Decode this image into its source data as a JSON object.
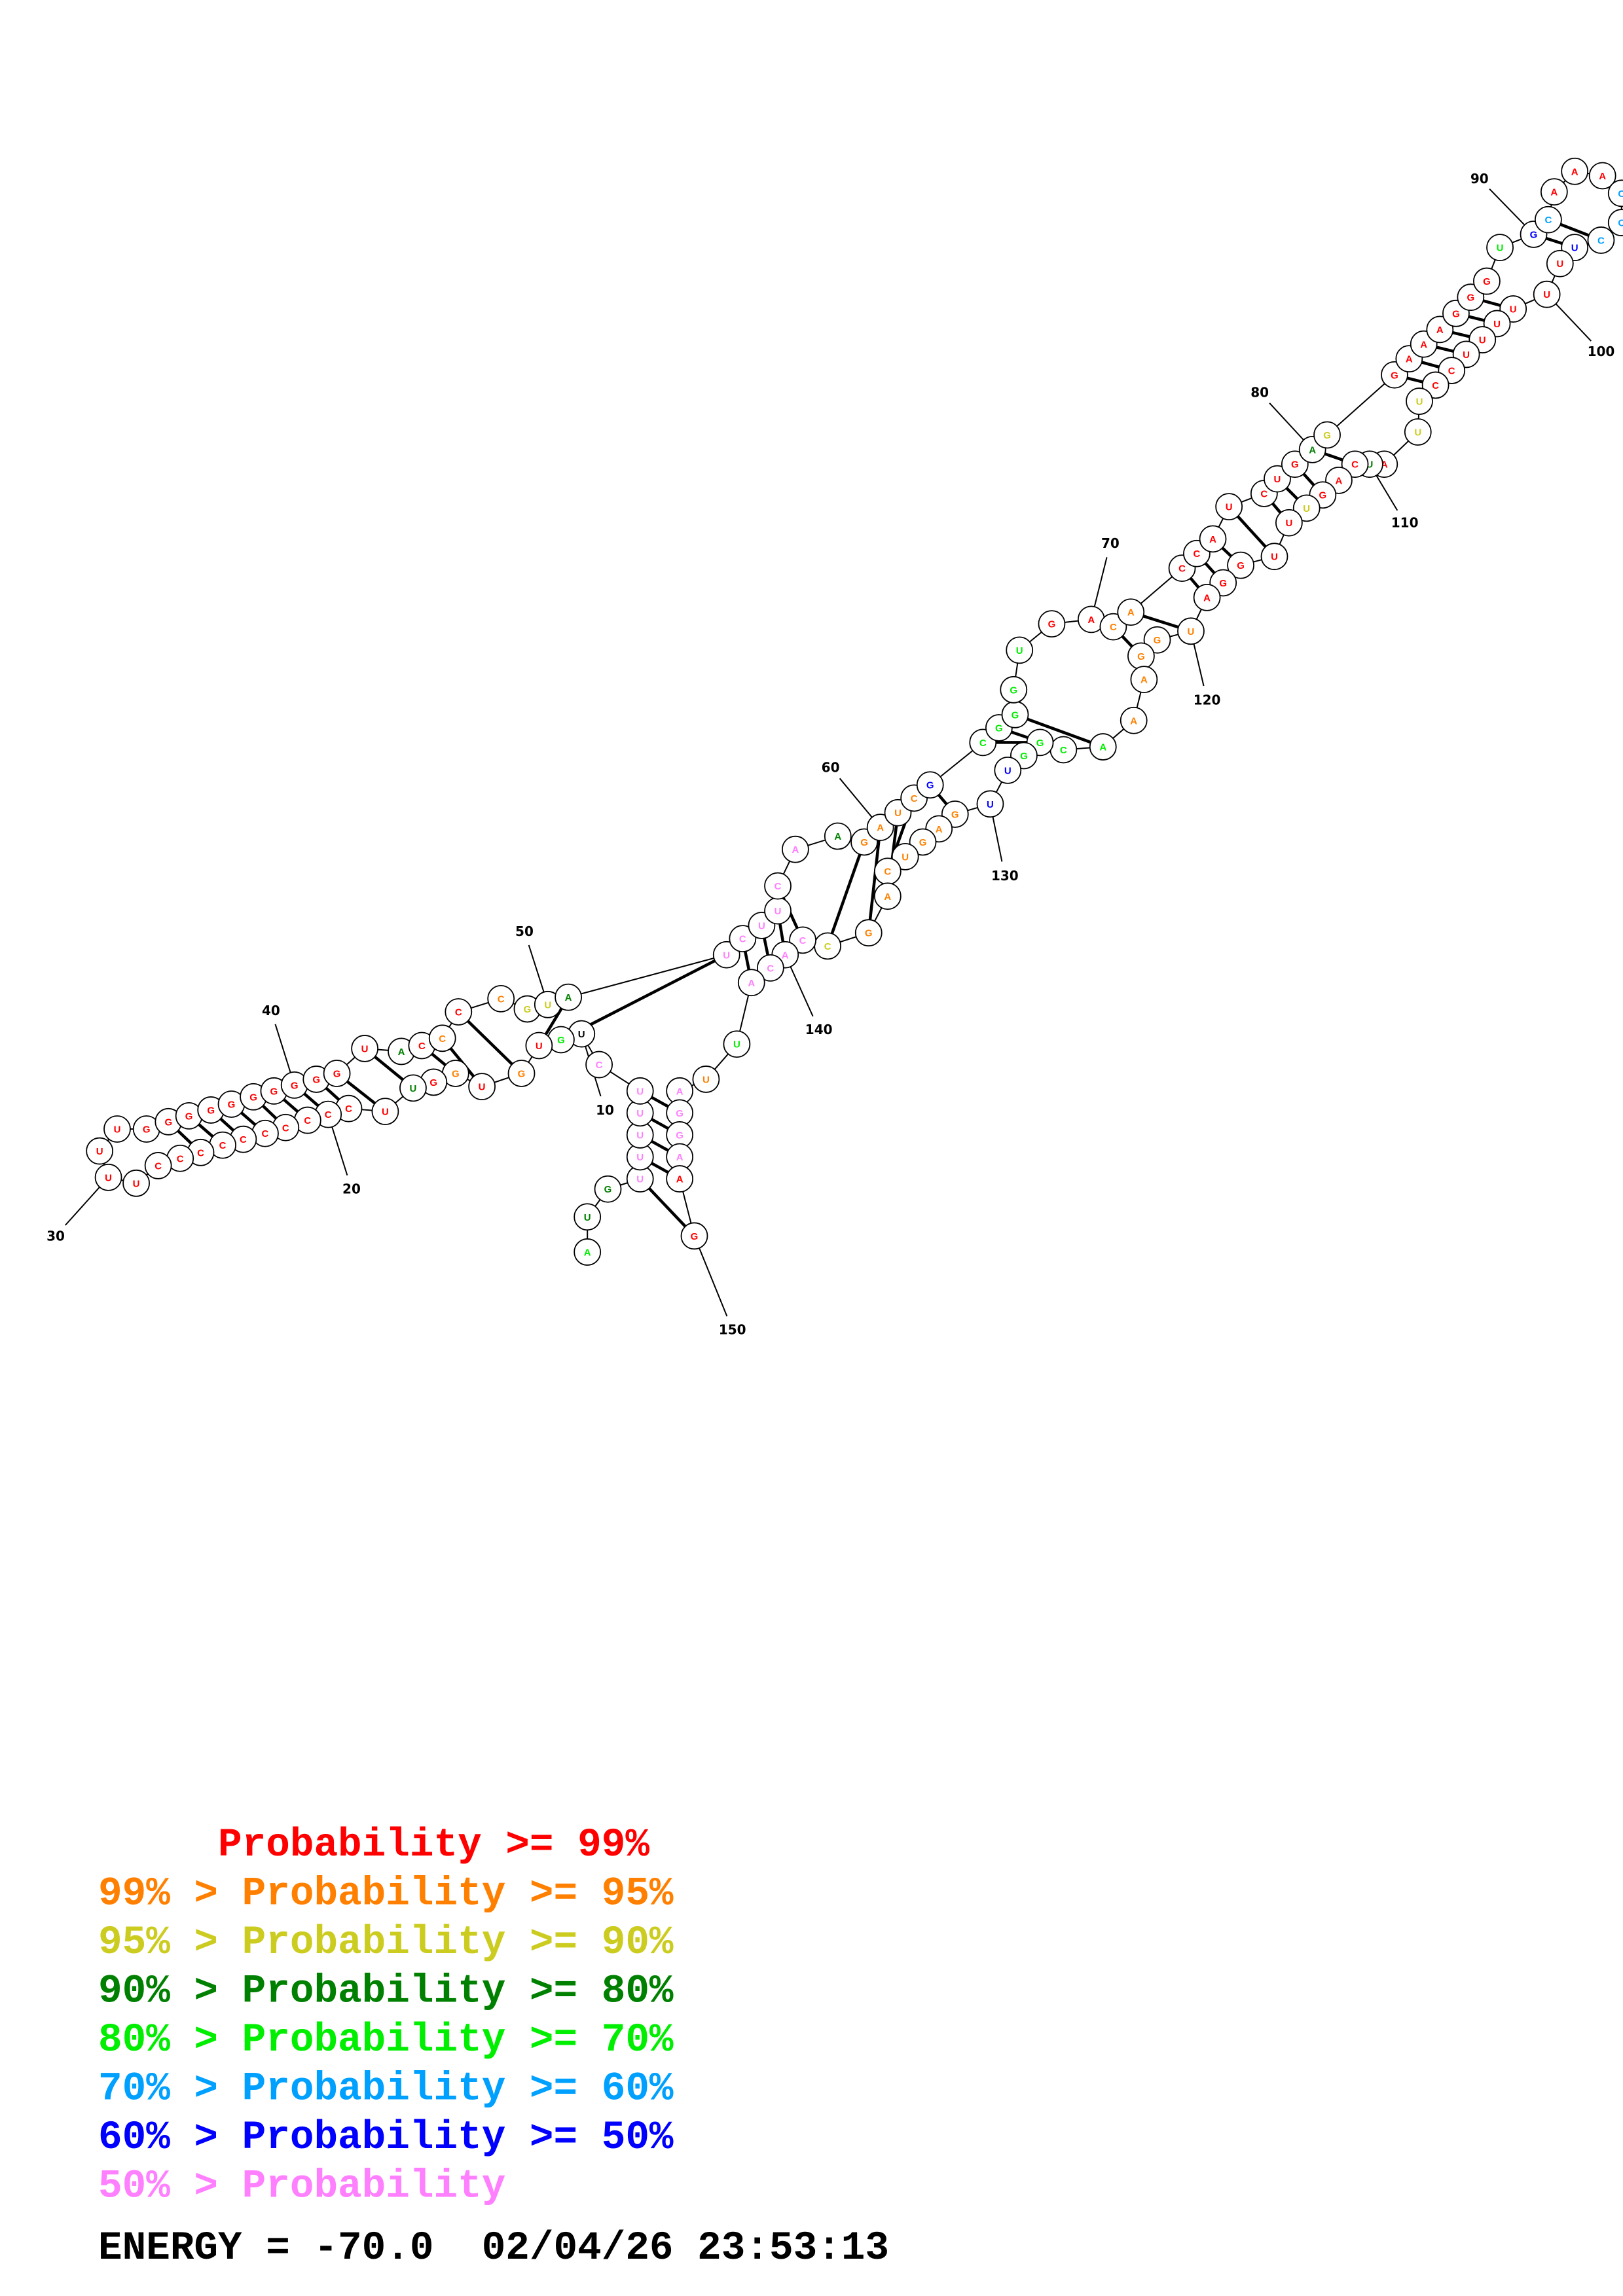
{
  "diagram": {
    "sequence": [
      {
        "n": 1,
        "base": "A",
        "c": "h"
      },
      {
        "n": 2,
        "base": "U",
        "c": "d"
      },
      {
        "n": 3,
        "base": "G",
        "c": "d"
      },
      {
        "n": 4,
        "base": "U",
        "c": "p"
      },
      {
        "n": 5,
        "base": "U",
        "c": "p"
      },
      {
        "n": 6,
        "base": "U",
        "c": "p"
      },
      {
        "n": 7,
        "base": "U",
        "c": "p"
      },
      {
        "n": 8,
        "base": "U",
        "c": "p"
      },
      {
        "n": 9,
        "base": "C",
        "c": "p"
      },
      {
        "n": 10,
        "base": "U",
        "c": "g"
      },
      {
        "n": 11,
        "base": "G",
        "c": "h"
      },
      {
        "n": 12,
        "base": "U",
        "c": "r"
      },
      {
        "n": 13,
        "base": "G",
        "c": "o"
      },
      {
        "n": 14,
        "base": "U",
        "c": "r"
      },
      {
        "n": 15,
        "base": "G",
        "c": "o"
      },
      {
        "n": 16,
        "base": "G",
        "c": "r"
      },
      {
        "n": 17,
        "base": "U",
        "c": "d"
      },
      {
        "n": 18,
        "base": "U",
        "c": "r"
      },
      {
        "n": 19,
        "base": "C",
        "c": "r"
      },
      {
        "n": 20,
        "base": "C",
        "c": "r"
      },
      {
        "n": 21,
        "base": "C",
        "c": "r"
      },
      {
        "n": 22,
        "base": "C",
        "c": "r"
      },
      {
        "n": 23,
        "base": "C",
        "c": "r"
      },
      {
        "n": 24,
        "base": "C",
        "c": "r"
      },
      {
        "n": 25,
        "base": "C",
        "c": "r"
      },
      {
        "n": 26,
        "base": "C",
        "c": "r"
      },
      {
        "n": 27,
        "base": "C",
        "c": "r"
      },
      {
        "n": 28,
        "base": "C",
        "c": "r"
      },
      {
        "n": 29,
        "base": "U",
        "c": "r"
      },
      {
        "n": 30,
        "base": "U",
        "c": "r"
      },
      {
        "n": 31,
        "base": "U",
        "c": "r"
      },
      {
        "n": 32,
        "base": "U",
        "c": "r"
      },
      {
        "n": 33,
        "base": "G",
        "c": "r"
      },
      {
        "n": 34,
        "base": "G",
        "c": "r"
      },
      {
        "n": 35,
        "base": "G",
        "c": "r"
      },
      {
        "n": 36,
        "base": "G",
        "c": "r"
      },
      {
        "n": 37,
        "base": "G",
        "c": "r"
      },
      {
        "n": 38,
        "base": "G",
        "c": "r"
      },
      {
        "n": 39,
        "base": "G",
        "c": "r"
      },
      {
        "n": 40,
        "base": "G",
        "c": "r"
      },
      {
        "n": 41,
        "base": "G",
        "c": "r"
      },
      {
        "n": 42,
        "base": "G",
        "c": "r"
      },
      {
        "n": 43,
        "base": "U",
        "c": "r"
      },
      {
        "n": 44,
        "base": "A",
        "c": "d"
      },
      {
        "n": 45,
        "base": "C",
        "c": "r"
      },
      {
        "n": 46,
        "base": "C",
        "c": "o"
      },
      {
        "n": 47,
        "base": "C",
        "c": "r"
      },
      {
        "n": 48,
        "base": "C",
        "c": "o"
      },
      {
        "n": 49,
        "base": "G",
        "c": "y"
      },
      {
        "n": 50,
        "base": "U",
        "c": "y"
      },
      {
        "n": 51,
        "base": "A",
        "c": "d"
      },
      {
        "n": 52,
        "base": "U",
        "c": "p"
      },
      {
        "n": 53,
        "base": "C",
        "c": "p"
      },
      {
        "n": 54,
        "base": "U",
        "c": "p"
      },
      {
        "n": 55,
        "base": "U",
        "c": "p"
      },
      {
        "n": 56,
        "base": "C",
        "c": "p"
      },
      {
        "n": 57,
        "base": "A",
        "c": "p"
      },
      {
        "n": 58,
        "base": "A",
        "c": "d"
      },
      {
        "n": 59,
        "base": "G",
        "c": "o"
      },
      {
        "n": 60,
        "base": "A",
        "c": "o"
      },
      {
        "n": 61,
        "base": "U",
        "c": "o"
      },
      {
        "n": 62,
        "base": "C",
        "c": "o"
      },
      {
        "n": 63,
        "base": "G",
        "c": "b"
      },
      {
        "n": 64,
        "base": "C",
        "c": "h"
      },
      {
        "n": 65,
        "base": "G",
        "c": "h"
      },
      {
        "n": 66,
        "base": "G",
        "c": "h"
      },
      {
        "n": 67,
        "base": "G",
        "c": "h"
      },
      {
        "n": 68,
        "base": "U",
        "c": "h"
      },
      {
        "n": 69,
        "base": "G",
        "c": "r"
      },
      {
        "n": 70,
        "base": "A",
        "c": "r"
      },
      {
        "n": 71,
        "base": "C",
        "c": "o"
      },
      {
        "n": 72,
        "base": "A",
        "c": "o"
      },
      {
        "n": 73,
        "base": "C",
        "c": "r"
      },
      {
        "n": 74,
        "base": "C",
        "c": "r"
      },
      {
        "n": 75,
        "base": "A",
        "c": "r"
      },
      {
        "n": 76,
        "base": "U",
        "c": "r"
      },
      {
        "n": 77,
        "base": "C",
        "c": "r"
      },
      {
        "n": 78,
        "base": "U",
        "c": "r"
      },
      {
        "n": 79,
        "base": "G",
        "c": "r"
      },
      {
        "n": 80,
        "base": "A",
        "c": "d"
      },
      {
        "n": 81,
        "base": "G",
        "c": "y"
      },
      {
        "n": 82,
        "base": "G",
        "c": "r"
      },
      {
        "n": 83,
        "base": "A",
        "c": "r"
      },
      {
        "n": 84,
        "base": "A",
        "c": "r"
      },
      {
        "n": 85,
        "base": "A",
        "c": "r"
      },
      {
        "n": 86,
        "base": "G",
        "c": "r"
      },
      {
        "n": 87,
        "base": "G",
        "c": "r"
      },
      {
        "n": 88,
        "base": "G",
        "c": "r"
      },
      {
        "n": 89,
        "base": "U",
        "c": "h"
      },
      {
        "n": 90,
        "base": "G",
        "c": "b"
      },
      {
        "n": 91,
        "base": "C",
        "c": "c"
      },
      {
        "n": 92,
        "base": "A",
        "c": "r"
      },
      {
        "n": 93,
        "base": "A",
        "c": "r"
      },
      {
        "n": 94,
        "base": "A",
        "c": "r"
      },
      {
        "n": 95,
        "base": "C",
        "c": "c"
      },
      {
        "n": 96,
        "base": "C",
        "c": "c"
      },
      {
        "n": 97,
        "base": "C",
        "c": "c"
      },
      {
        "n": 98,
        "base": "U",
        "c": "b"
      },
      {
        "n": 99,
        "base": "U",
        "c": "r"
      },
      {
        "n": 100,
        "base": "U",
        "c": "r"
      },
      {
        "n": 101,
        "base": "U",
        "c": "r"
      },
      {
        "n": 102,
        "base": "U",
        "c": "r"
      },
      {
        "n": 103,
        "base": "U",
        "c": "r"
      },
      {
        "n": 104,
        "base": "U",
        "c": "r"
      },
      {
        "n": 105,
        "base": "C",
        "c": "r"
      },
      {
        "n": 106,
        "base": "C",
        "c": "r"
      },
      {
        "n": 107,
        "base": "U",
        "c": "y"
      },
      {
        "n": 108,
        "base": "U",
        "c": "y"
      },
      {
        "n": 109,
        "base": "A",
        "c": "r"
      },
      {
        "n": 110,
        "base": "U",
        "c": "d"
      },
      {
        "n": 111,
        "base": "C",
        "c": "r"
      },
      {
        "n": 112,
        "base": "A",
        "c": "r"
      },
      {
        "n": 113,
        "base": "G",
        "c": "r"
      },
      {
        "n": 114,
        "base": "U",
        "c": "y"
      },
      {
        "n": 115,
        "base": "U",
        "c": "r"
      },
      {
        "n": 116,
        "base": "U",
        "c": "r"
      },
      {
        "n": 117,
        "base": "G",
        "c": "r"
      },
      {
        "n": 118,
        "base": "G",
        "c": "r"
      },
      {
        "n": 119,
        "base": "A",
        "c": "r"
      },
      {
        "n": 120,
        "base": "U",
        "c": "o"
      },
      {
        "n": 121,
        "base": "G",
        "c": "o"
      },
      {
        "n": 122,
        "base": "G",
        "c": "o"
      },
      {
        "n": 123,
        "base": "A",
        "c": "o"
      },
      {
        "n": 124,
        "base": "A",
        "c": "o"
      },
      {
        "n": 125,
        "base": "A",
        "c": "h"
      },
      {
        "n": 126,
        "base": "C",
        "c": "h"
      },
      {
        "n": 127,
        "base": "G",
        "c": "h"
      },
      {
        "n": 128,
        "base": "G",
        "c": "h"
      },
      {
        "n": 129,
        "base": "U",
        "c": "b"
      },
      {
        "n": 130,
        "base": "U",
        "c": "b"
      },
      {
        "n": 131,
        "base": "G",
        "c": "o"
      },
      {
        "n": 132,
        "base": "A",
        "c": "o"
      },
      {
        "n": 133,
        "base": "G",
        "c": "o"
      },
      {
        "n": 134,
        "base": "U",
        "c": "o"
      },
      {
        "n": 135,
        "base": "C",
        "c": "o"
      },
      {
        "n": 136,
        "base": "A",
        "c": "o"
      },
      {
        "n": 137,
        "base": "G",
        "c": "o"
      },
      {
        "n": 138,
        "base": "C",
        "c": "y"
      },
      {
        "n": 139,
        "base": "C",
        "c": "p"
      },
      {
        "n": 140,
        "base": "A",
        "c": "p"
      },
      {
        "n": 141,
        "base": "C",
        "c": "p"
      },
      {
        "n": 142,
        "base": "A",
        "c": "p"
      },
      {
        "n": 143,
        "base": "U",
        "c": "h"
      },
      {
        "n": 144,
        "base": "U",
        "c": "o"
      },
      {
        "n": 145,
        "base": "A",
        "c": "p"
      },
      {
        "n": 146,
        "base": "G",
        "c": "p"
      },
      {
        "n": 147,
        "base": "G",
        "c": "p"
      },
      {
        "n": 148,
        "base": "A",
        "c": "p"
      },
      {
        "n": 149,
        "base": "A",
        "c": "r"
      },
      {
        "n": 150,
        "base": "G",
        "c": "r"
      }
    ],
    "pairs": [
      [
        4,
        150
      ],
      [
        5,
        149
      ],
      [
        6,
        148
      ],
      [
        7,
        147
      ],
      [
        8,
        146
      ],
      [
        11,
        52
      ],
      [
        12,
        51
      ],
      [
        13,
        47
      ],
      [
        14,
        46
      ],
      [
        15,
        45
      ],
      [
        17,
        43
      ],
      [
        18,
        42
      ],
      [
        19,
        41
      ],
      [
        20,
        40
      ],
      [
        21,
        39
      ],
      [
        22,
        38
      ],
      [
        23,
        37
      ],
      [
        24,
        36
      ],
      [
        25,
        35
      ],
      [
        26,
        34
      ],
      [
        53,
        142
      ],
      [
        54,
        141
      ],
      [
        55,
        140
      ],
      [
        56,
        139
      ],
      [
        59,
        138
      ],
      [
        60,
        137
      ],
      [
        61,
        136
      ],
      [
        62,
        135
      ],
      [
        63,
        131
      ],
      [
        64,
        127
      ],
      [
        65,
        126
      ],
      [
        66,
        125
      ],
      [
        71,
        122
      ],
      [
        72,
        120
      ],
      [
        73,
        119
      ],
      [
        74,
        118
      ],
      [
        75,
        117
      ],
      [
        76,
        116
      ],
      [
        77,
        115
      ],
      [
        78,
        114
      ],
      [
        79,
        113
      ],
      [
        80,
        111
      ],
      [
        82,
        106
      ],
      [
        83,
        105
      ],
      [
        84,
        104
      ],
      [
        85,
        103
      ],
      [
        86,
        102
      ],
      [
        87,
        101
      ],
      [
        90,
        98
      ],
      [
        91,
        97
      ]
    ],
    "position_labels": [
      {
        "n": 10,
        "text": "10"
      },
      {
        "n": 20,
        "text": "20"
      },
      {
        "n": 30,
        "text": "30"
      },
      {
        "n": 40,
        "text": "40"
      },
      {
        "n": 50,
        "text": "50"
      },
      {
        "n": 60,
        "text": "60"
      },
      {
        "n": 70,
        "text": "70"
      },
      {
        "n": 80,
        "text": "80"
      },
      {
        "n": 90,
        "text": "90"
      },
      {
        "n": 100,
        "text": "100"
      },
      {
        "n": 110,
        "text": "110"
      },
      {
        "n": 120,
        "text": "120"
      },
      {
        "n": 130,
        "text": "130"
      },
      {
        "n": 140,
        "text": "140"
      },
      {
        "n": 150,
        "text": "150"
      }
    ],
    "palette": {
      "r": "#ff0000",
      "o": "#ff8000",
      "y": "#cccc20",
      "d": "#008000",
      "h": "#00ee00",
      "c": "#00a0ff",
      "b": "#0000ff",
      "p": "#ff80ff"
    }
  },
  "legend": {
    "lines": [
      {
        "text": "     Probability >= 99%",
        "color": "#ff0000"
      },
      {
        "text": "99% > Probability >= 95%",
        "color": "#ff8000"
      },
      {
        "text": "95% > Probability >= 90%",
        "color": "#cccc20"
      },
      {
        "text": "90% > Probability >= 80%",
        "color": "#008000"
      },
      {
        "text": "80% > Probability >= 70%",
        "color": "#00ee00"
      },
      {
        "text": "70% > Probability >= 60%",
        "color": "#00a0ff"
      },
      {
        "text": "60% > Probability >= 50%",
        "color": "#0000ff"
      },
      {
        "text": "50% > Probability",
        "color": "#ff80ff"
      }
    ],
    "footer": "ENERGY = -70.0  02/04/26 23:53:13"
  }
}
